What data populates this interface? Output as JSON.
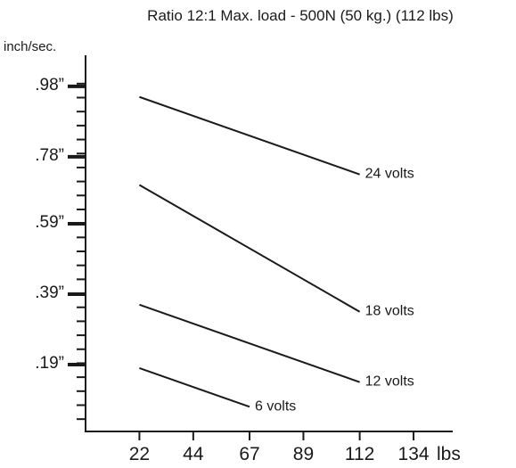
{
  "chart_data": {
    "type": "line",
    "title": "Ratio 12:1  Max. load - 500N (50 kg.) (112 lbs)",
    "ylabel": "inch/sec.",
    "xlabel": "lbs",
    "x_ticks": [
      "22",
      "44",
      "67",
      "89",
      "112",
      "134"
    ],
    "y_ticks": [
      {
        "value": 0.98,
        "label": ".98”"
      },
      {
        "value": 0.78,
        "label": ".78”"
      },
      {
        "value": 0.59,
        "label": ".59”"
      },
      {
        "value": 0.39,
        "label": ".39”"
      },
      {
        "value": 0.19,
        "label": ".19”"
      }
    ],
    "xlim": [
      0,
      150
    ],
    "ylim": [
      0,
      1.06
    ],
    "grid": false,
    "legend": "none",
    "series": [
      {
        "name": "24 volts",
        "x": [
          22,
          112
        ],
        "y": [
          0.95,
          0.73
        ]
      },
      {
        "name": "18 volts",
        "x": [
          22,
          112
        ],
        "y": [
          0.7,
          0.34
        ]
      },
      {
        "name": "12 volts",
        "x": [
          22,
          112
        ],
        "y": [
          0.36,
          0.14
        ]
      },
      {
        "name": "6 volts",
        "x": [
          22,
          67
        ],
        "y": [
          0.18,
          0.07
        ]
      }
    ],
    "color": "#1a1a1a"
  }
}
